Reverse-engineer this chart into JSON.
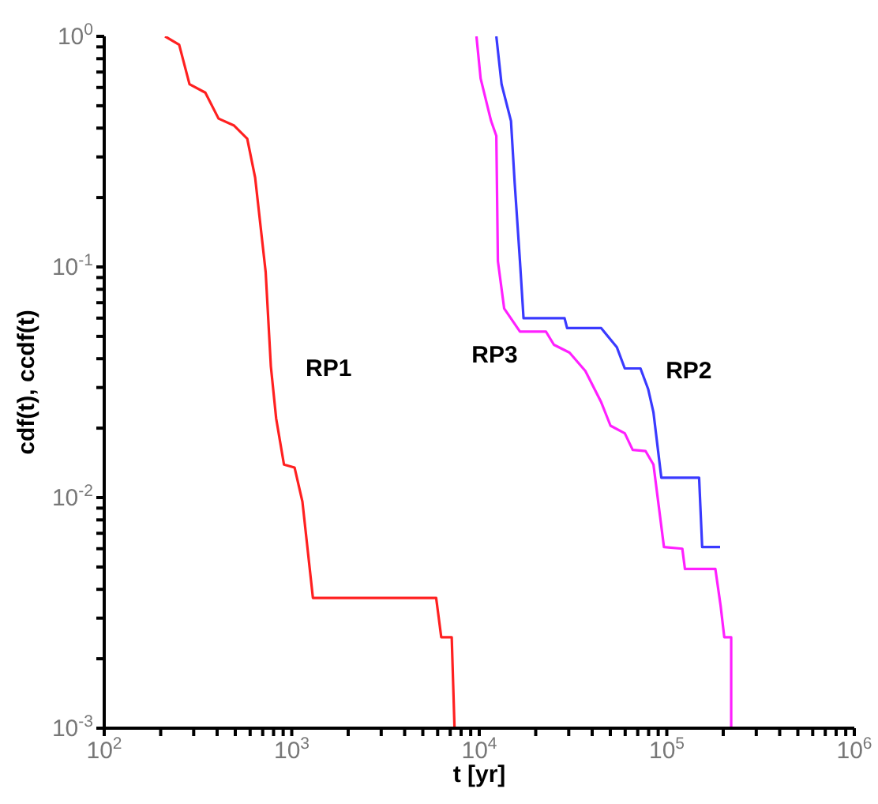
{
  "chart_data": {
    "type": "line",
    "xlabel": "t [yr]",
    "ylabel": "cdf(t), ccdf(t)",
    "log": "xy",
    "marker": "none",
    "line_style": "solid",
    "xlim": [
      100,
      1000000
    ],
    "ylim": [
      0.001,
      1
    ],
    "xticks": [
      {
        "value": 100,
        "label": "10$^{2}$"
      },
      {
        "value": 200,
        "label": null
      },
      {
        "value": 300,
        "label": null
      },
      {
        "value": 400,
        "label": null
      },
      {
        "value": 500,
        "label": null
      },
      {
        "value": 600,
        "label": null
      },
      {
        "value": 700,
        "label": null
      },
      {
        "value": 800,
        "label": null
      },
      {
        "value": 900,
        "label": null
      },
      {
        "value": 1000,
        "label": "10$^{3}$"
      },
      {
        "value": 2000,
        "label": null
      },
      {
        "value": 3000,
        "label": null
      },
      {
        "value": 4000,
        "label": null
      },
      {
        "value": 5000,
        "label": null
      },
      {
        "value": 6000,
        "label": null
      },
      {
        "value": 7000,
        "label": null
      },
      {
        "value": 8000,
        "label": null
      },
      {
        "value": 9000,
        "label": null
      },
      {
        "value": 10000,
        "label": "10$^{4}$"
      },
      {
        "value": 20000,
        "label": null
      },
      {
        "value": 30000,
        "label": null
      },
      {
        "value": 40000,
        "label": null
      },
      {
        "value": 50000,
        "label": null
      },
      {
        "value": 60000,
        "label": null
      },
      {
        "value": 70000,
        "label": null
      },
      {
        "value": 80000,
        "label": null
      },
      {
        "value": 90000,
        "label": null
      },
      {
        "value": 100000,
        "label": "10$^{5}$"
      },
      {
        "value": 200000,
        "label": null
      },
      {
        "value": 300000,
        "label": null
      },
      {
        "value": 400000,
        "label": null
      },
      {
        "value": 500000,
        "label": null
      },
      {
        "value": 600000,
        "label": null
      },
      {
        "value": 700000,
        "label": null
      },
      {
        "value": 800000,
        "label": null
      },
      {
        "value": 900000,
        "label": null
      },
      {
        "value": 1000000,
        "label": "10$^{6}$"
      }
    ],
    "yticks": [
      {
        "value": 0.001,
        "label": "10$^{-3}$"
      },
      {
        "value": 0.002,
        "label": null
      },
      {
        "value": 0.003,
        "label": null
      },
      {
        "value": 0.004,
        "label": null
      },
      {
        "value": 0.005,
        "label": null
      },
      {
        "value": 0.006,
        "label": null
      },
      {
        "value": 0.007,
        "label": null
      },
      {
        "value": 0.008,
        "label": null
      },
      {
        "value": 0.009,
        "label": null
      },
      {
        "value": 0.01,
        "label": "10$^{-2}$"
      },
      {
        "value": 0.02,
        "label": null
      },
      {
        "value": 0.03,
        "label": null
      },
      {
        "value": 0.04,
        "label": null
      },
      {
        "value": 0.05,
        "label": null
      },
      {
        "value": 0.06,
        "label": null
      },
      {
        "value": 0.07,
        "label": null
      },
      {
        "value": 0.08,
        "label": null
      },
      {
        "value": 0.09,
        "label": null
      },
      {
        "value": 0.1,
        "label": "10$^{-1}$"
      },
      {
        "value": 0.2,
        "label": null
      },
      {
        "value": 0.3,
        "label": null
      },
      {
        "value": 0.4,
        "label": null
      },
      {
        "value": 0.5,
        "label": null
      },
      {
        "value": 0.6,
        "label": null
      },
      {
        "value": 0.7,
        "label": null
      },
      {
        "value": 0.8,
        "label": null
      },
      {
        "value": 0.9,
        "label": null
      },
      {
        "value": 1,
        "label": "10$^{0}$"
      }
    ],
    "series": [
      {
        "name": "RP1",
        "color": "#ff2020",
        "x": [
          211,
          251,
          285,
          346,
          407,
          493,
          579,
          638,
          726,
          774,
          826,
          909,
          1035,
          1140,
          1297,
          5890,
          6270,
          7130,
          7380
        ],
        "values": [
          1,
          0.92,
          0.62,
          0.57,
          0.44,
          0.41,
          0.36,
          0.244,
          0.095,
          0.037,
          0.022,
          0.0139,
          0.0135,
          0.0096,
          0.00367,
          0.00367,
          0.00248,
          0.00248,
          0.001
        ]
      },
      {
        "name": "RP2",
        "color": "#3a3aff",
        "x": [
          12330,
          13150,
          14760,
          15450,
          16480,
          17220,
          28500,
          29400,
          44700,
          54200,
          59700,
          72400,
          79600,
          84900,
          93500,
          148700,
          154400,
          192400
        ],
        "values": [
          1,
          0.62,
          0.43,
          0.231,
          0.106,
          0.06,
          0.06,
          0.0543,
          0.0543,
          0.0448,
          0.0363,
          0.0363,
          0.0295,
          0.0234,
          0.0122,
          0.0122,
          0.0061,
          0.0061
        ]
      },
      {
        "name": "RP3",
        "color": "#ff20ff",
        "x": [
          9660,
          10170,
          11560,
          12330,
          12570,
          13580,
          16480,
          22700,
          25000,
          30300,
          36800,
          44700,
          50100,
          59700,
          65800,
          77100,
          84900,
          96600,
          121000,
          125000,
          181600,
          193600,
          202600,
          220500,
          220500
        ],
        "values": [
          1,
          0.656,
          0.43,
          0.37,
          0.106,
          0.066,
          0.0524,
          0.0524,
          0.046,
          0.0425,
          0.0354,
          0.0259,
          0.0205,
          0.019,
          0.0161,
          0.0159,
          0.0139,
          0.0061,
          0.006,
          0.0049,
          0.0049,
          0.0034,
          0.00248,
          0.00248,
          0.001
        ]
      }
    ]
  }
}
